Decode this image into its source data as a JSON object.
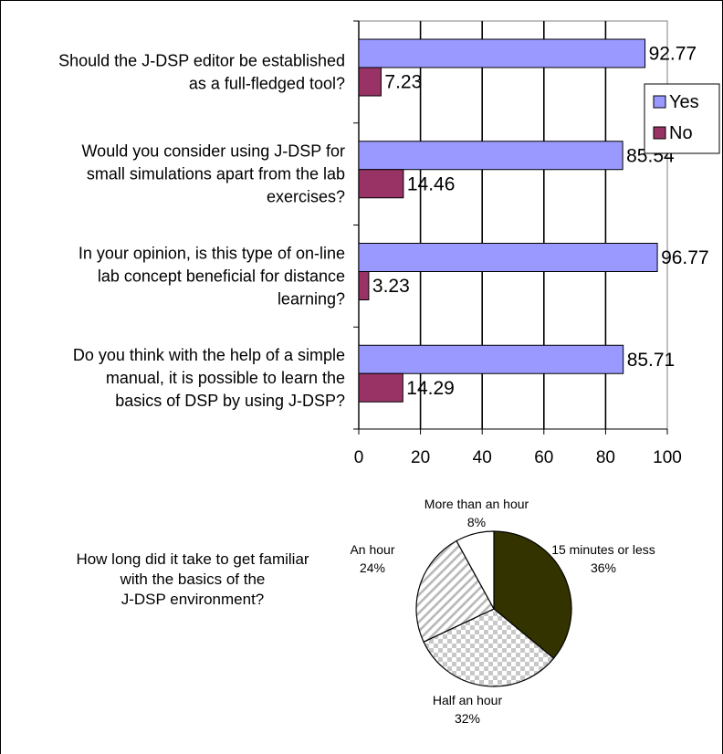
{
  "colors": {
    "yes": "#9999ff",
    "no": "#993366",
    "pie_dark": "#333300",
    "pie_checker": "#d9d9d9",
    "pie_stripe": "#bfbfbf"
  },
  "chart_data": [
    {
      "type": "bar",
      "orientation": "horizontal",
      "categories": [
        [
          "Should the J-DSP editor be established",
          "as a full-fledged tool?"
        ],
        [
          "Would you consider using J-DSP for",
          "small simulations apart from the lab",
          "exercises?"
        ],
        [
          "In your opinion, is this type of on-line",
          "lab concept beneficial for distance",
          "learning?"
        ],
        [
          "Do you think with the help of a simple",
          "manual, it is possible to learn the",
          "basics of DSP by using J-DSP?"
        ]
      ],
      "series": [
        {
          "name": "Yes",
          "values": [
            92.77,
            85.54,
            96.77,
            85.71
          ],
          "labels": [
            "92.77",
            "85.54",
            "96.77",
            "85.71"
          ]
        },
        {
          "name": "No",
          "values": [
            7.23,
            14.46,
            3.23,
            14.29
          ],
          "labels": [
            "7.23",
            "14.46",
            "3.23",
            "14.29"
          ]
        }
      ],
      "xlim": [
        0,
        100
      ],
      "xticks": [
        "0",
        "20",
        "40",
        "60",
        "80",
        "100"
      ],
      "grid": "vertical",
      "legend": "right"
    },
    {
      "type": "pie",
      "question": [
        "How long did it take to get familiar",
        "with the basics of the",
        "J-DSP environment?"
      ],
      "slices": [
        {
          "label": "15 minutes or less",
          "value": 36,
          "pct": "36%",
          "fill": "dark"
        },
        {
          "label": "Half an hour",
          "value": 32,
          "pct": "32%",
          "fill": "checker"
        },
        {
          "label": "An hour",
          "value": 24,
          "pct": "24%",
          "fill": "stripe"
        },
        {
          "label": "More than an hour",
          "value": 8,
          "pct": "8%",
          "fill": "white"
        }
      ]
    }
  ]
}
